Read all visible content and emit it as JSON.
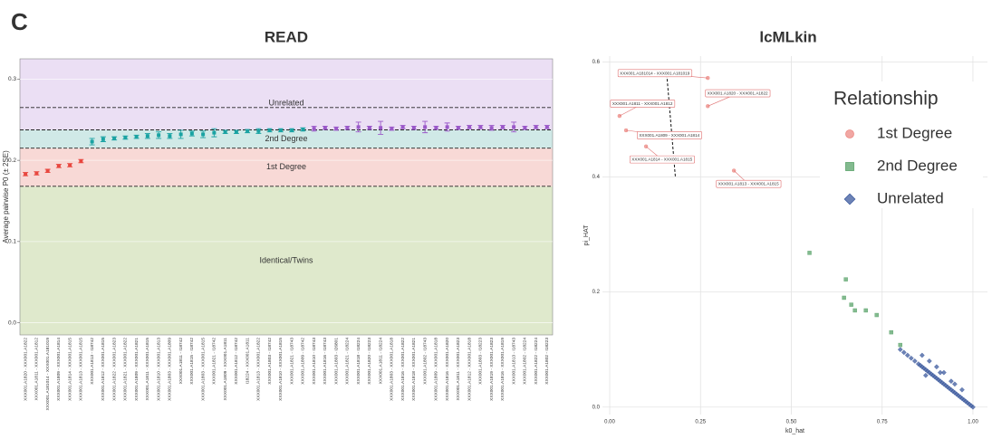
{
  "panel_label": "C",
  "chart_data": [
    {
      "type": "errorbar",
      "title": "READ",
      "y_label": "Average pairwise P0 (± 2SE)",
      "ylim": [
        -0.015,
        0.325
      ],
      "yticks": [
        {
          "value": 0,
          "label": "0.0"
        },
        0.1,
        0.2,
        0.3
      ],
      "bands": [
        {
          "label": "Identical/Twins",
          "upper": 0.168,
          "color": "#dfe9cc",
          "label_color": "#6a9a2a"
        },
        {
          "label": "1st Degree",
          "upper": 0.215,
          "color": "#f8d9d6",
          "label_color": "#e0605a"
        },
        {
          "label": "2nd Degree",
          "upper": 0.2375,
          "color": "#d0e9e7",
          "label_color": "#1f8f8f"
        },
        {
          "label": "Unrelated",
          "upper": null,
          "color": "#ebdff4",
          "label_color": "#9a6ac0"
        }
      ],
      "dashed_lines": [
        0.168,
        0.215,
        0.2375,
        0.265
      ],
      "categories": [
        "XXX001.A1820 - XXX001.A1822",
        "XXX001.A1811 - XXX001.A1812",
        "XXX001.A181014 - XXX001.A181019",
        "XXX001.A1809 - XXX001.A1814",
        "XXX001.A1814 - XXX001.A1815",
        "XXX001.A1813 - XXX001.A1815",
        "XXX001.A1813 - I18742",
        "XXX001.A1812 - XXX001.A1815",
        "XXX001.A1822 - XXX001.A1823",
        "XXX001.A1821 - XXX001.A1822",
        "XXX001.A1809 - XXX001.A1821",
        "XXX001.A1811 - XXX001.A1815",
        "XXX001.A1810 - XXX001.A1813",
        "XXX001.A1803 - XXX001.A1809",
        "XXX001.A1811 - I18742",
        "XXX001.A1815 - I18742",
        "XXX001.A1803 - XXX001.A1815",
        "XXX001.A1821 - I18742",
        "XXX001.A1809 - XXX001.A1811",
        "XXX001.A1812 - I18742",
        "I18224 - XXX001.A1811",
        "XXX001.A1813 - XXX001.A1822",
        "XXX001.A1803 - I18742",
        "XXX001.A1810 - XXX001.A1815",
        "XXX001.A1821 - I18743",
        "XXX001.A1809 - I18742",
        "XXX001.A1810 - I18743",
        "XXX001.A1816 - I18743",
        "XXX001.A1803 - I26801",
        "XXX001.A1821 - I18224",
        "XXX001.A1818 - I18224",
        "XXX001.A1820 - I18223",
        "XXX001.A1811 - I18224",
        "XXX001.A1803 - XXX001.A1818",
        "XXX001.A1816 - XXX001.A1822",
        "XXX001.A1818 - XXX001.A1821",
        "XXX001.A1802 - I18743",
        "XXX001.A1809 - XXX001.A1818",
        "XXX001.A1816 - XXX001.A1820",
        "XXX001.A1811 - XXX001.A1823",
        "XXX001.A1812 - XXX001.A1818",
        "XXX001.A1803 - I18223",
        "XXX001.A1819 - XXX001.A1823",
        "XXX001.A1816 - XXX001.A1819",
        "XXX001.A1813 - I18743",
        "XXX001.A1802 - I18224",
        "XXX001.A1822 - I18224",
        "XXX001.A1802 - I18223"
      ],
      "values": [
        0.183,
        0.184,
        0.187,
        0.193,
        0.194,
        0.199,
        0.223,
        0.226,
        0.227,
        0.228,
        0.229,
        0.23,
        0.231,
        0.23,
        0.232,
        0.233,
        0.232,
        0.234,
        0.235,
        0.235,
        0.236,
        0.236,
        0.237,
        0.237,
        0.237,
        0.238,
        0.239,
        0.24,
        0.239,
        0.24,
        0.241,
        0.24,
        0.24,
        0.239,
        0.241,
        0.24,
        0.241,
        0.24,
        0.241,
        0.24,
        0.241,
        0.241,
        0.24,
        0.241,
        0.241,
        0.24,
        0.241,
        0.241
      ],
      "errors": [
        0.002,
        0.002,
        0.002,
        0.002,
        0.002,
        0.002,
        0.004,
        0.003,
        0.002,
        0.002,
        0.002,
        0.003,
        0.004,
        0.003,
        0.005,
        0.003,
        0.004,
        0.005,
        0.002,
        0.002,
        0.002,
        0.003,
        0.002,
        0.002,
        0.002,
        0.002,
        0.003,
        0.002,
        0.002,
        0.002,
        0.006,
        0.002,
        0.008,
        0.002,
        0.002,
        0.002,
        0.007,
        0.002,
        0.005,
        0.002,
        0.002,
        0.002,
        0.003,
        0.002,
        0.006,
        0.002,
        0.002,
        0.002
      ],
      "colors": [
        "#e8473f",
        "#e8473f",
        "#e8473f",
        "#e8473f",
        "#e8473f",
        "#e8473f",
        "#1aa3a3",
        "#1aa3a3",
        "#1aa3a3",
        "#1aa3a3",
        "#1aa3a3",
        "#1aa3a3",
        "#1aa3a3",
        "#1aa3a3",
        "#1aa3a3",
        "#1aa3a3",
        "#1aa3a3",
        "#1aa3a3",
        "#1aa3a3",
        "#1aa3a3",
        "#1aa3a3",
        "#1aa3a3",
        "#1aa3a3",
        "#1aa3a3",
        "#1aa3a3",
        "#1aa3a3",
        "#9b59c9",
        "#9b59c9",
        "#9b59c9",
        "#9b59c9",
        "#9b59c9",
        "#9b59c9",
        "#9b59c9",
        "#9b59c9",
        "#9b59c9",
        "#9b59c9",
        "#9b59c9",
        "#9b59c9",
        "#9b59c9",
        "#9b59c9",
        "#9b59c9",
        "#9b59c9",
        "#9b59c9",
        "#9b59c9",
        "#9b59c9",
        "#9b59c9",
        "#9b59c9",
        "#9b59c9"
      ]
    },
    {
      "type": "scatter",
      "title": "lcMLkin",
      "x_label": "k0_hat",
      "y_label": "pi_HAT",
      "xlim": [
        -0.02,
        1.04
      ],
      "ylim": [
        -0.013,
        0.61
      ],
      "xticks": [
        {
          "value": 0,
          "label": "0.00"
        },
        0.25,
        {
          "value": 0.5,
          "label": "0.50"
        },
        0.75,
        {
          "value": 1,
          "label": "1.00"
        }
      ],
      "yticks": [
        {
          "value": 0,
          "label": "0.0"
        },
        0.2,
        0.4,
        0.6
      ],
      "grid": true,
      "legend_title": "Relationship",
      "legend": "top-right",
      "series": [
        {
          "name": "1st Degree",
          "color": "#ec8a84",
          "marker": "circle",
          "x": [
            0.27,
            0.027,
            0.27,
            0.045,
            0.1,
            0.342
          ],
          "values": [
            0.572,
            0.506,
            0.523,
            0.481,
            0.453,
            0.411
          ]
        },
        {
          "name": "2nd Degree",
          "color": "#5aa36a",
          "marker": "square",
          "x": [
            0.55,
            0.65,
            0.645,
            0.665,
            0.675,
            0.705,
            0.735,
            0.775,
            0.8
          ],
          "values": [
            0.268,
            0.222,
            0.19,
            0.178,
            0.168,
            0.168,
            0.16,
            0.13,
            0.108
          ]
        },
        {
          "name": "Unrelated",
          "color": "#3c5a9e",
          "marker": "diamond",
          "x": [
            0.8,
            0.81,
            0.82,
            0.83,
            0.84,
            0.85,
            0.855,
            0.86,
            0.865,
            0.87,
            0.875,
            0.88,
            0.885,
            0.89,
            0.895,
            0.9,
            0.905,
            0.91,
            0.915,
            0.92,
            0.925,
            0.93,
            0.935,
            0.94,
            0.945,
            0.95,
            0.955,
            0.96,
            0.965,
            0.97,
            0.975,
            0.98,
            0.985,
            0.99,
            0.995,
            1.0,
            0.86,
            0.88,
            0.9,
            0.92,
            0.94,
            0.87,
            0.91,
            0.95,
            0.97
          ],
          "values": [
            0.1,
            0.095,
            0.09,
            0.085,
            0.08,
            0.075,
            0.0725,
            0.07,
            0.0675,
            0.065,
            0.0625,
            0.06,
            0.0575,
            0.055,
            0.0525,
            0.05,
            0.0475,
            0.045,
            0.0425,
            0.04,
            0.0375,
            0.035,
            0.0325,
            0.03,
            0.0275,
            0.025,
            0.0225,
            0.02,
            0.0175,
            0.015,
            0.0125,
            0.01,
            0.0075,
            0.005,
            0.0025,
            0.0,
            0.09,
            0.08,
            0.07,
            0.06,
            0.045,
            0.055,
            0.06,
            0.04,
            0.03
          ]
        }
      ],
      "annotations": [
        {
          "text": "XXX001.A181014 - XXX001.A181019",
          "x": 0.124,
          "y": 0.58
        },
        {
          "text": "XXX001.A1811 - XXX001.A1812",
          "x": 0.09,
          "y": 0.527
        },
        {
          "text": "XXX001.A1820 - XXX001.A1822",
          "x": 0.352,
          "y": 0.545
        },
        {
          "text": "XXX001.A1809 - XXX001.A1814",
          "x": 0.164,
          "y": 0.472
        },
        {
          "text": "XXX001.A1814 - XXX001.A1815",
          "x": 0.144,
          "y": 0.43
        },
        {
          "text": "XXX001.A1813 - XXX001.A1815",
          "x": 0.382,
          "y": 0.3875
        }
      ],
      "dashed_line": {
        "x": [
          0.156,
          0.181
        ],
        "y": [
          0.586,
          0.398
        ]
      }
    }
  ]
}
